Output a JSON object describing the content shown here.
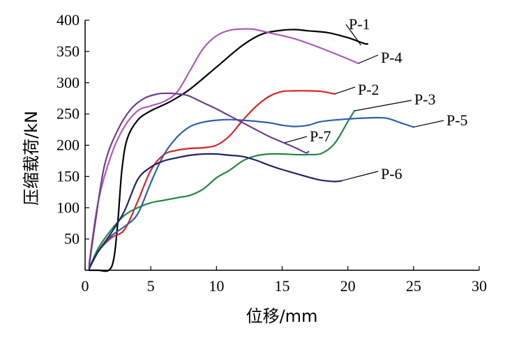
{
  "chart_data": {
    "type": "line",
    "title": "",
    "xlabel": "位移/mm",
    "ylabel": "压缩载荷/kN",
    "xlim": [
      0,
      30
    ],
    "ylim": [
      0,
      400
    ],
    "x_ticks": [
      "0",
      "5",
      "10",
      "15",
      "20",
      "25",
      "30"
    ],
    "y_ticks": [
      "50",
      "100",
      "150",
      "200",
      "250",
      "300",
      "350",
      "400"
    ],
    "grid": false,
    "legend": "inline labels with leader lines",
    "series": [
      {
        "name": "P-1",
        "color": "#000000",
        "x": [
          0.3,
          1.0,
          1.8,
          2.2,
          2.5,
          2.8,
          3.2,
          4.0,
          5.0,
          6.5,
          8.0,
          10.0,
          12.0,
          13.5,
          15.0,
          16.0,
          17.0,
          18.5,
          20.0,
          21.2,
          21.5
        ],
        "y": [
          0,
          0,
          0,
          20,
          80,
          160,
          210,
          240,
          255,
          270,
          290,
          325,
          360,
          378,
          384,
          385,
          383,
          380,
          372,
          363,
          362
        ]
      },
      {
        "name": "P-4",
        "color": "#b05ab8",
        "x": [
          0.3,
          1.0,
          2.0,
          3.0,
          4.0,
          5.0,
          6.0,
          7.0,
          8.0,
          9.0,
          10.0,
          11.0,
          12.0,
          12.5,
          13.0,
          14.0,
          16.0,
          18.0,
          20.0,
          20.8
        ],
        "y": [
          10,
          110,
          185,
          230,
          255,
          263,
          270,
          285,
          320,
          355,
          375,
          384,
          386,
          386,
          385,
          380,
          370,
          355,
          338,
          331
        ]
      },
      {
        "name": "P-2",
        "color": "#dd2222",
        "x": [
          0.3,
          1.0,
          2.0,
          3.0,
          4.0,
          5.0,
          6.0,
          7.0,
          8.0,
          9.0,
          10.0,
          11.0,
          12.0,
          13.0,
          14.0,
          15.0,
          16.0,
          17.0,
          18.0,
          19.0
        ],
        "y": [
          2,
          30,
          52,
          65,
          110,
          160,
          185,
          192,
          195,
          196,
          200,
          215,
          240,
          262,
          278,
          286,
          287,
          287,
          286,
          282
        ]
      },
      {
        "name": "P-3",
        "color": "#228844",
        "x": [
          0.3,
          1.0,
          2.0,
          3.0,
          4.0,
          5.0,
          6.0,
          7.0,
          8.0,
          9.0,
          10.0,
          11.0,
          12.0,
          13.0,
          14.0,
          15.0,
          16.0,
          17.0,
          18.0,
          19.0,
          20.0,
          20.5
        ],
        "y": [
          2,
          35,
          65,
          88,
          100,
          108,
          112,
          116,
          120,
          130,
          148,
          160,
          175,
          183,
          186,
          186,
          185,
          185,
          187,
          203,
          238,
          255
        ]
      },
      {
        "name": "P-5",
        "color": "#2b5fab",
        "x": [
          0.3,
          1.0,
          2.0,
          3.0,
          4.0,
          5.0,
          6.0,
          7.0,
          8.0,
          9.0,
          10.0,
          11.0,
          12.0,
          14.0,
          15.0,
          16.0,
          17.0,
          18.0,
          20.0,
          22.0,
          23.0,
          24.0,
          25.0
        ],
        "y": [
          2,
          30,
          55,
          70,
          90,
          140,
          185,
          213,
          230,
          237,
          240,
          241,
          240,
          236,
          232,
          230,
          232,
          238,
          242,
          244,
          243,
          236,
          229
        ]
      },
      {
        "name": "P-6",
        "color": "#222266",
        "x": [
          0.3,
          1.0,
          2.0,
          3.0,
          4.0,
          5.0,
          6.0,
          7.0,
          8.0,
          9.0,
          10.0,
          11.0,
          12.0,
          13.0,
          14.0,
          15.0,
          16.0,
          17.0,
          18.0,
          19.0,
          19.5
        ],
        "y": [
          2,
          30,
          60,
          95,
          145,
          165,
          175,
          180,
          184,
          186,
          186,
          184,
          182,
          176,
          168,
          161,
          155,
          149,
          144,
          142,
          143
        ]
      },
      {
        "name": "P-7",
        "color": "#6b3e8e",
        "x": [
          0.3,
          0.8,
          1.5,
          2.5,
          3.5,
          4.5,
          5.5,
          6.0,
          6.5,
          7.5,
          8.0,
          9.0,
          10.0,
          11.0,
          12.0,
          13.0,
          14.0,
          15.0,
          16.0,
          16.8,
          17.0
        ],
        "y": [
          5,
          80,
          170,
          225,
          258,
          275,
          282,
          283,
          283,
          281,
          278,
          268,
          258,
          247,
          236,
          225,
          214,
          205,
          196,
          188,
          190
        ]
      }
    ]
  }
}
